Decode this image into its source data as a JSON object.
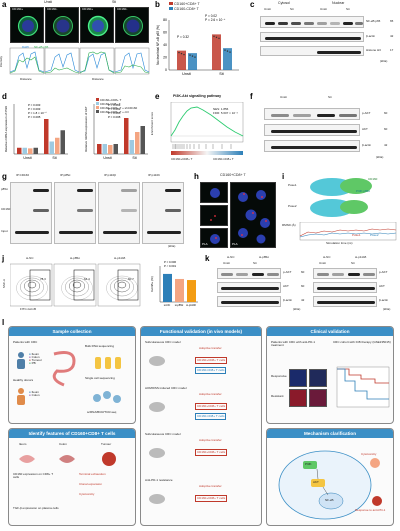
{
  "panel_labels": [
    "a",
    "b",
    "c",
    "d",
    "e",
    "f",
    "g",
    "h",
    "i",
    "j",
    "k",
    "l"
  ],
  "a": {
    "groups": [
      "Unsti",
      "Sti"
    ],
    "conditions": [
      "CD160+",
      "CD160-",
      "CD160+",
      "CD160-"
    ],
    "legend": [
      "DAPI",
      "NF-κB p65"
    ],
    "axis_x": "Distance",
    "axis_y": "Intensity"
  },
  "b": {
    "legend": [
      "CD160+CD8+ T",
      "CD160-CD8+ T"
    ],
    "ylabel": "Nuclear/total NF-κB p65 (%)",
    "categories": [
      "Unsti",
      "Sti"
    ],
    "stats": [
      "P = 0.02",
      "P = 2.6 × 10⁻⁴",
      "P = 0.32"
    ],
    "chart_data": {
      "type": "bar",
      "categories": [
        "Unsti",
        "Sti"
      ],
      "series": [
        {
          "name": "CD160+CD8+ T",
          "values": [
            31,
            57
          ],
          "color": "#c0392b"
        },
        {
          "name": "CD160-CD8+ T",
          "values": [
            27,
            35
          ],
          "color": "#2c7fb8"
        }
      ],
      "ylim": [
        0,
        80
      ],
      "yticks": [
        0,
        20,
        40,
        60,
        80
      ]
    }
  },
  "c": {
    "sections": [
      "Cytosol",
      "Nuclear"
    ],
    "lanes": [
      "Unsti",
      "Sti",
      "Unsti",
      "Sti"
    ],
    "subl": [
      "CD160+",
      "CD160-",
      "CD160+",
      "CD160-",
      "CD160+",
      "CD160-",
      "CD160+",
      "CD160-"
    ],
    "rows": [
      "NF-κB p65",
      "β-actin",
      "Histone H3"
    ],
    "mw": [
      "65",
      "42",
      "17"
    ],
    "unit": "(kDa)"
  },
  "d": {
    "left_ylabel": "Relative mRNA expression of PI3K",
    "right_ylabel": "Relative mRNA expression of AKT",
    "legend": [
      "CD160+CD8+ T",
      "CD160-CD8+ T",
      "CD160+CD8+ T + shCD160",
      "CD160+CD8+ T + ctrl"
    ],
    "stats_left": [
      "P = 0.003",
      "P = 0.003",
      "P = 1.8 × 10⁻⁴",
      "P = 0.005"
    ],
    "stats_right": [
      "P = 0.003",
      "P = 0.003",
      "P = 0.005",
      "P = 0.008"
    ],
    "categories": [
      "Unsti",
      "Sti"
    ],
    "chart_data": [
      {
        "type": "bar",
        "categories": [
          "Unsti",
          "Sti"
        ],
        "series": [
          {
            "name": "CD160+CD8+ T",
            "values": [
              1.0,
              5.6
            ]
          },
          {
            "name": "CD160-CD8+ T",
            "values": [
              1.0,
              2.0
            ]
          },
          {
            "name": "CD160+CD8+ T + shCD160",
            "values": [
              0.9,
              2.6
            ]
          },
          {
            "name": "CD160+CD8+ T + ctrl",
            "values": [
              1.0,
              3.8
            ]
          }
        ],
        "ylim": [
          0,
          8
        ]
      },
      {
        "type": "bar",
        "categories": [
          "Unsti",
          "Sti"
        ],
        "series": [
          {
            "name": "CD160+CD8+ T",
            "values": [
              1.0,
              3.6
            ]
          },
          {
            "name": "CD160-CD8+ T",
            "values": [
              1.0,
              1.4
            ]
          },
          {
            "name": "CD160+CD8+ T + shCD160",
            "values": [
              0.9,
              2.2
            ]
          },
          {
            "name": "CD160+CD8+ T + ctrl",
            "values": [
              1.0,
              2.8
            ]
          }
        ],
        "ylim": [
          0,
          5
        ]
      }
    ]
  },
  "e": {
    "title": "PI3K-Akt signalling pathway",
    "ylabel": "Enrichment score",
    "stats": [
      "NES: 1.856",
      "FDR: 5.607 × 10⁻³"
    ],
    "xlabel_left": "CD160+CD8+ T",
    "xlabel_right": "CD160-CD8+ T"
  },
  "f": {
    "lanes": [
      "Unsti",
      "Sti"
    ],
    "subl": [
      "CD160+",
      "CD160-",
      "CD160+",
      "CD160-"
    ],
    "rows": [
      "p-AKT",
      "AKT",
      "β-actin"
    ],
    "mw": [
      "60",
      "60",
      "42"
    ],
    "unit": "(kDa)"
  },
  "g": {
    "ip_labels": [
      "IP:CD160",
      "IP:p85α",
      "IP:p110β",
      "IP:p110δ"
    ],
    "pair_labels": [
      "IgG",
      "CD160",
      "IgG",
      "p85α",
      "IgG",
      "p110β",
      "IgG",
      "p110δ"
    ],
    "rows": [
      "p85α",
      "CD160",
      "Input"
    ],
    "unit": "(kDa)"
  },
  "h": {
    "title": "CD160+CD8+ T",
    "label": "PLA"
  },
  "i": {
    "labels": [
      "Pose1",
      "Pose2",
      "CD160",
      "PI3K p85α"
    ],
    "ylabel": "RMSD (Å)",
    "xlabel": "Simulation time (ns)",
    "legend": [
      "Pose1",
      "Pose2"
    ]
  },
  "j": {
    "conditions": [
      "si-NC",
      "si-p85α",
      "si-p110δ"
    ],
    "xlabel": "FITC-GzmB",
    "ylabel": "SSC-A",
    "gate_values": [
      "78.3",
      "64.4",
      "60.7"
    ],
    "bar_ylabel": "GzmB+ (%)",
    "stats": [
      "P = 0.006",
      "P < 0.001"
    ],
    "chart_data": {
      "type": "bar",
      "categories": [
        "si-NC",
        "si-p85α",
        "si-p110δ"
      ],
      "values": [
        78,
        64,
        61
      ],
      "ylim": [
        0,
        100
      ]
    }
  },
  "k": {
    "left_lanes": [
      "si-NC",
      "si-p85α"
    ],
    "right_lanes": [
      "si-NC",
      "si-p110δ"
    ],
    "groups": [
      "Unsti",
      "Sti",
      "Unsti",
      "Sti"
    ],
    "rows": [
      "p-AKT",
      "AKT",
      "β-actin"
    ],
    "mw": [
      "60",
      "60",
      "42"
    ],
    "unit": "(kDa)"
  },
  "l": {
    "box1": {
      "title": "Sample collection",
      "left": "Patients with CRC",
      "left_items": [
        "Ileum",
        "Colon",
        "Tumour",
        "PB"
      ],
      "donors": "Healthy donors",
      "donor_items": [
        "Ileum",
        "Colon"
      ],
      "bulk": "Bulk RNA sequencing",
      "single": "Single cell sequencing",
      "scrna": "scRNA/BCR/TCR-seq"
    },
    "box2": {
      "title": "Functional validation (in vivo models)",
      "items": [
        "Subcutaneous CRC model",
        "AOM/DSS induced CRC model",
        "Subcutaneous CRC model",
        "Anti-PD-1 resistance"
      ],
      "adoptive": "Adoptive transfer",
      "cells_pos": "CD160+CD8+ T cells",
      "cells_neg": "CD160-CD8+ T cells"
    },
    "box3": {
      "title": "Clinical validation",
      "left": "Patients with CRC with anti-PD-1 treatment",
      "right": "CRC cohort with ICB therapy (GSE235015)",
      "r": "Responsive",
      "nr": "Resistant"
    },
    "box4": {
      "title": "Identify features of CD160+CD8+ T cells",
      "sites": [
        "Ileum",
        "Colon",
        "Tumour"
      ],
      "notes": [
        "CD160 expression on CD8+ T cells",
        "Terminal exhaustion",
        "Clonal expansion",
        "Cytotoxicity",
        "TGF-β expression on plasma cells"
      ]
    },
    "box5": {
      "title": "Mechanism clarification",
      "labels": [
        "PI3K",
        "AKT",
        "NF-κB",
        "Cytotoxicity",
        "Response to anti-PD-1"
      ]
    }
  }
}
